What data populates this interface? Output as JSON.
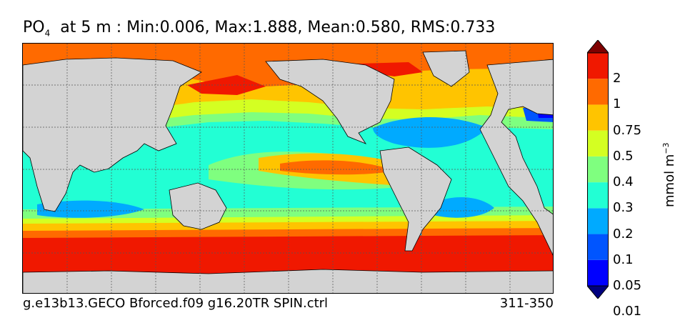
{
  "title": {
    "variable": "PO",
    "subscript": "4",
    "rest": "  at 5 m : Min:0.006, Max:1.888, Mean:0.580, RMS:0.733"
  },
  "footer": {
    "run_name": "g.e13b13.GECO Bforced.f09 g16.20TR SPIN.ctrl",
    "period": "311-350"
  },
  "colorbar": {
    "unit_text": "mmol m",
    "unit_exponent": "−3",
    "tick_labels": [
      "2",
      "1",
      "0.75",
      "0.5",
      "0.4",
      "0.3",
      "0.2",
      "0.1",
      "0.05",
      "0.01"
    ],
    "bins": [
      {
        "range": "<0.01",
        "color": "#00007f"
      },
      {
        "range": "0.01-0.05",
        "color": "#0000ff"
      },
      {
        "range": "0.05-0.1",
        "color": "#0055ff"
      },
      {
        "range": "0.1-0.2",
        "color": "#00aaff"
      },
      {
        "range": "0.2-0.3",
        "color": "#22ffd4"
      },
      {
        "range": "0.3-0.4",
        "color": "#7fff7f"
      },
      {
        "range": "0.4-0.5",
        "color": "#d4ff22"
      },
      {
        "range": "0.5-0.75",
        "color": "#ffc400"
      },
      {
        "range": "0.75-1",
        "color": "#ff6a00"
      },
      {
        "range": "1-2",
        "color": "#f01800"
      },
      {
        "range": ">2",
        "color": "#7f0000"
      }
    ],
    "extend": "both"
  },
  "map": {
    "land_color": "#d3d3d3",
    "gridlines": "dashed"
  }
}
